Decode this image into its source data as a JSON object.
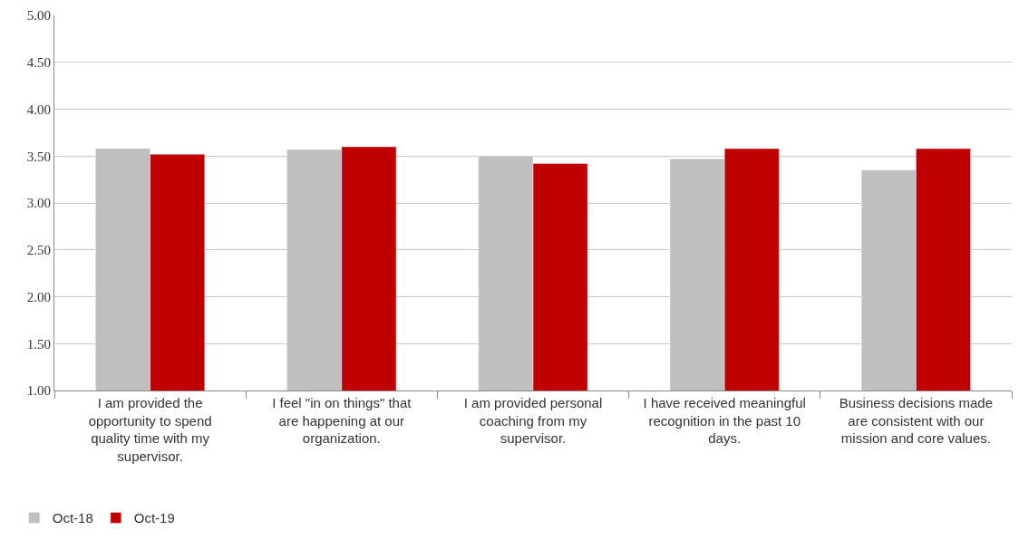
{
  "chart_data": {
    "type": "bar",
    "categories": [
      "I am provided the opportunity to spend quality time with my supervisor.",
      "I feel \"in on things\" that are happening at our organization.",
      "I am provided personal coaching from my supervisor.",
      "I have received meaningful recognition in the past 10 days.",
      "Business decisions made are consistent with our mission and core values."
    ],
    "series": [
      {
        "name": "Oct-18",
        "color": "#bfbfbf",
        "values": [
          3.58,
          3.57,
          3.5,
          3.47,
          3.35
        ]
      },
      {
        "name": "Oct-19",
        "color": "#c00000",
        "values": [
          3.52,
          3.6,
          3.42,
          3.58,
          3.58
        ]
      }
    ],
    "ylim": [
      1,
      5
    ],
    "yticks": [
      {
        "value": 1,
        "label": "1.00"
      },
      {
        "value": 1.5,
        "label": "1.50"
      },
      {
        "value": 2,
        "label": "2.00"
      },
      {
        "value": 2.5,
        "label": "2.50"
      },
      {
        "value": 3,
        "label": "3.00"
      },
      {
        "value": 3.5,
        "label": "3.50"
      },
      {
        "value": 4,
        "label": "4.00"
      },
      {
        "value": 4.5,
        "label": "4.50"
      },
      {
        "value": 5,
        "label": "5.00"
      }
    ],
    "grid": "y",
    "legend": "bottom left"
  }
}
